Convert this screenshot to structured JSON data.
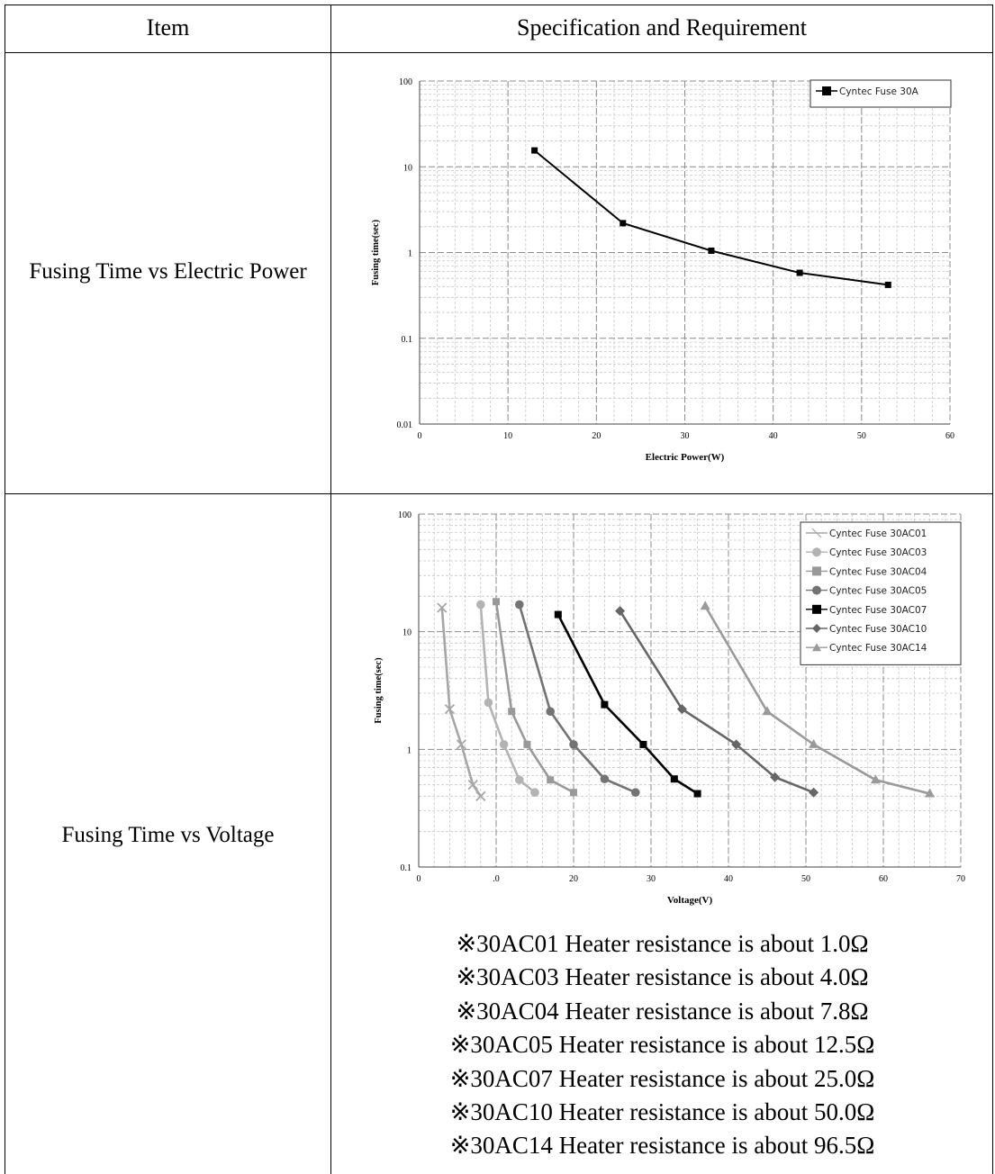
{
  "table": {
    "header_item": "Item",
    "header_spec": "Specification and Requirement",
    "rows": [
      {
        "label": "Fusing Time vs Electric Power"
      },
      {
        "label": "Fusing Time vs Voltage"
      }
    ]
  },
  "notes": [
    "※30AC01 Heater resistance is about 1.0Ω",
    "※30AC03 Heater resistance is about 4.0Ω",
    "※30AC04 Heater resistance is about 7.8Ω",
    "※30AC05 Heater resistance is about 12.5Ω",
    "※30AC07 Heater resistance is about 25.0Ω",
    "※30AC10 Heater resistance is about 50.0Ω",
    "※30AC14 Heater resistance is about 96.5Ω"
  ],
  "chart_data": [
    {
      "type": "line",
      "xlabel": "Electric Power(W)",
      "ylabel": "Fusing time(sec)",
      "xlim": [
        0,
        60
      ],
      "ylim": [
        0.01,
        100
      ],
      "y_scale": "log",
      "x_ticks": [
        "0",
        "10",
        "20",
        "30",
        "40",
        "50",
        "60"
      ],
      "y_ticks": [
        "0.01",
        "0.1",
        "1",
        "10",
        "100"
      ],
      "grid": true,
      "legend": "top-right",
      "series": [
        {
          "name": "Cyntec Fuse 30A",
          "marker": "square",
          "color": "#000000",
          "x": [
            13,
            23,
            33,
            43,
            53
          ],
          "y": [
            15.5,
            2.2,
            1.05,
            0.58,
            0.42
          ]
        }
      ]
    },
    {
      "type": "line",
      "xlabel": "Voltage(V)",
      "ylabel": "Fusing time(sec)",
      "xlim": [
        0,
        70
      ],
      "ylim": [
        0.1,
        100
      ],
      "y_scale": "log",
      "x_ticks": [
        "0",
        ".0",
        "20",
        "30",
        "40",
        "50",
        "60",
        "70"
      ],
      "y_ticks": [
        "0.1",
        "1",
        "10",
        "100"
      ],
      "grid": true,
      "legend": "top-right",
      "series": [
        {
          "name": "Cyntec Fuse  30AC01",
          "marker": "cross",
          "color": "#a6a6a6",
          "x": [
            3,
            4,
            5.5,
            7,
            8
          ],
          "y": [
            16,
            2.2,
            1.1,
            0.5,
            0.4
          ]
        },
        {
          "name": "Cyntec Fuse  30AC03",
          "marker": "circle",
          "color": "#b3b3b3",
          "x": [
            8,
            9,
            11,
            13,
            15
          ],
          "y": [
            17,
            2.5,
            1.1,
            0.55,
            0.43
          ]
        },
        {
          "name": "Cyntec Fuse  30AC04",
          "marker": "square",
          "color": "#999999",
          "x": [
            10,
            12,
            14,
            17,
            20
          ],
          "y": [
            18,
            2.1,
            1.1,
            0.55,
            0.43
          ]
        },
        {
          "name": "Cyntec Fuse  30AC05",
          "marker": "circle",
          "color": "#737373",
          "x": [
            13,
            17,
            20,
            24,
            28
          ],
          "y": [
            17,
            2.1,
            1.1,
            0.56,
            0.43
          ]
        },
        {
          "name": "Cyntec Fuse  30AC07",
          "marker": "square",
          "color": "#000000",
          "x": [
            18,
            24,
            29,
            33,
            36
          ],
          "y": [
            14,
            2.4,
            1.1,
            0.56,
            0.42
          ]
        },
        {
          "name": "Cyntec Fuse  30AC10",
          "marker": "diamond",
          "color": "#666666",
          "x": [
            26,
            34,
            41,
            46,
            51
          ],
          "y": [
            15,
            2.2,
            1.1,
            0.58,
            0.43
          ]
        },
        {
          "name": "Cyntec Fuse  30AC14",
          "marker": "triangle",
          "color": "#9a9a9a",
          "x": [
            37,
            45,
            51,
            59,
            66
          ],
          "y": [
            16.5,
            2.1,
            1.1,
            0.55,
            0.42
          ]
        }
      ]
    }
  ]
}
